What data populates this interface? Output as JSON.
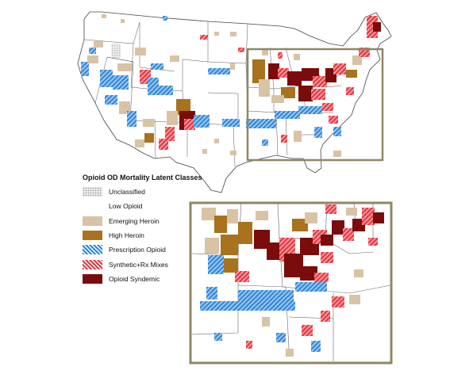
{
  "legend": {
    "title": "Opioid OD Mortality Latent Classes",
    "items": [
      {
        "label": "Unclassified",
        "color": "#d8d8d8",
        "pattern": "dots"
      },
      {
        "label": "Low Opioid",
        "color": "#ffffff",
        "pattern": "none"
      },
      {
        "label": "Emerging Heroin",
        "color": "#d9c3a5",
        "pattern": "solid"
      },
      {
        "label": "High Heroin",
        "color": "#a8721e",
        "pattern": "solid"
      },
      {
        "label": "Prescription Opioid",
        "color": "#2e86d8",
        "pattern": "hatch"
      },
      {
        "label": "Synthetic+Rx Mixes",
        "color": "#e8323c",
        "pattern": "hatch"
      },
      {
        "label": "Opioid Syndemic",
        "color": "#7a0c0c",
        "pattern": "solid"
      }
    ]
  },
  "colors": {
    "frame": "#8e8766",
    "state_border": "#555555"
  }
}
